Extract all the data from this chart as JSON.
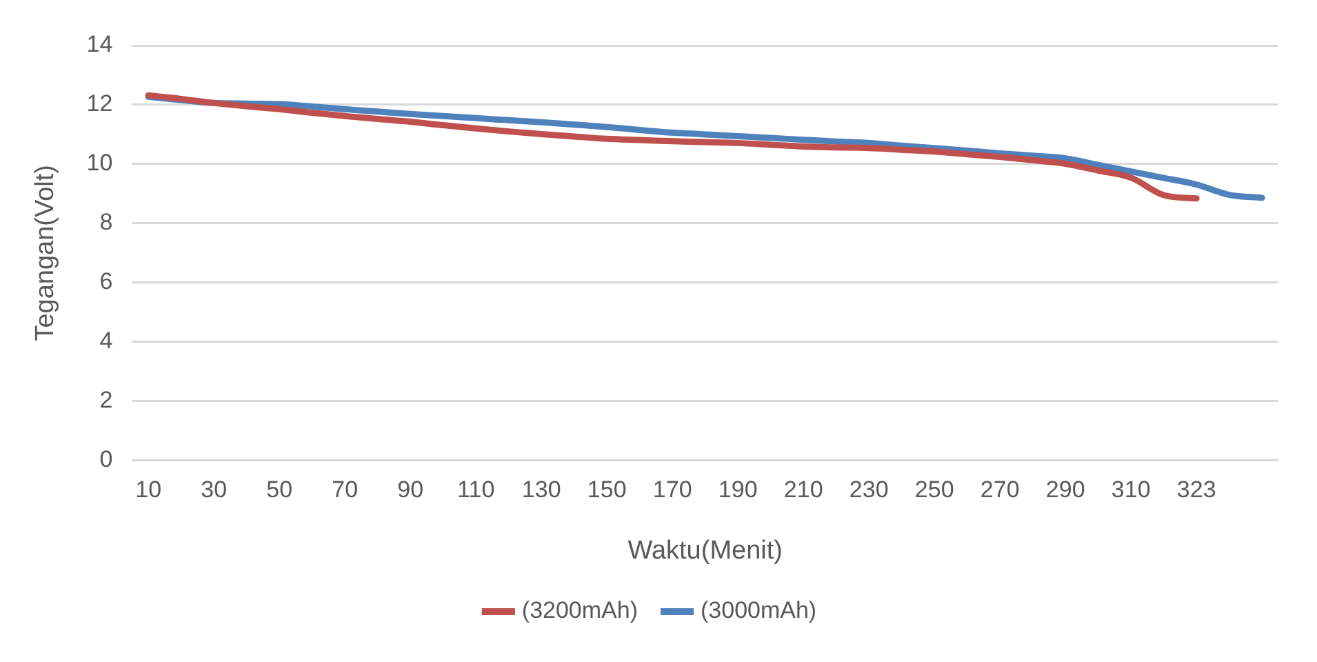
{
  "chart_data": {
    "type": "line",
    "xlabel": "Waktu(Menit)",
    "ylabel": "Tegangan(Volt)",
    "categories": [
      "10",
      null,
      "30",
      null,
      "50",
      null,
      "70",
      null,
      "90",
      null,
      "110",
      null,
      "130",
      null,
      "150",
      null,
      "170",
      null,
      "190",
      null,
      "210",
      null,
      "230",
      null,
      "250",
      null,
      "270",
      null,
      "290",
      null,
      "310",
      null,
      "323",
      null,
      null
    ],
    "series": [
      {
        "name": "(3200mAh)",
        "color": "#c0504d",
        "values": [
          12.32,
          12.2,
          12.06,
          11.95,
          11.85,
          11.73,
          11.62,
          11.52,
          11.43,
          11.31,
          11.2,
          11.1,
          11.01,
          10.93,
          10.85,
          10.81,
          10.77,
          10.74,
          10.71,
          10.65,
          10.59,
          10.56,
          10.54,
          10.48,
          10.42,
          10.33,
          10.24,
          10.13,
          10.01,
          9.78,
          9.54,
          8.95,
          8.84,
          null,
          null
        ]
      },
      {
        "name": "(3000mAh)",
        "color": "#4f81bd",
        "values": [
          12.27,
          12.16,
          12.06,
          12.04,
          12.02,
          11.94,
          11.85,
          11.77,
          11.69,
          11.62,
          11.55,
          11.48,
          11.41,
          11.33,
          11.25,
          11.15,
          11.06,
          11.0,
          10.94,
          10.88,
          10.82,
          10.76,
          10.71,
          10.62,
          10.54,
          10.45,
          10.36,
          10.28,
          10.19,
          9.97,
          9.75,
          9.53,
          9.31,
          8.96,
          8.86
        ]
      }
    ],
    "ylim": [
      0,
      14
    ],
    "yticks": [
      0,
      2,
      4,
      6,
      8,
      10,
      12,
      14
    ],
    "grid": "y",
    "legend": "bottom",
    "marker": "none",
    "line_style": "solid"
  }
}
